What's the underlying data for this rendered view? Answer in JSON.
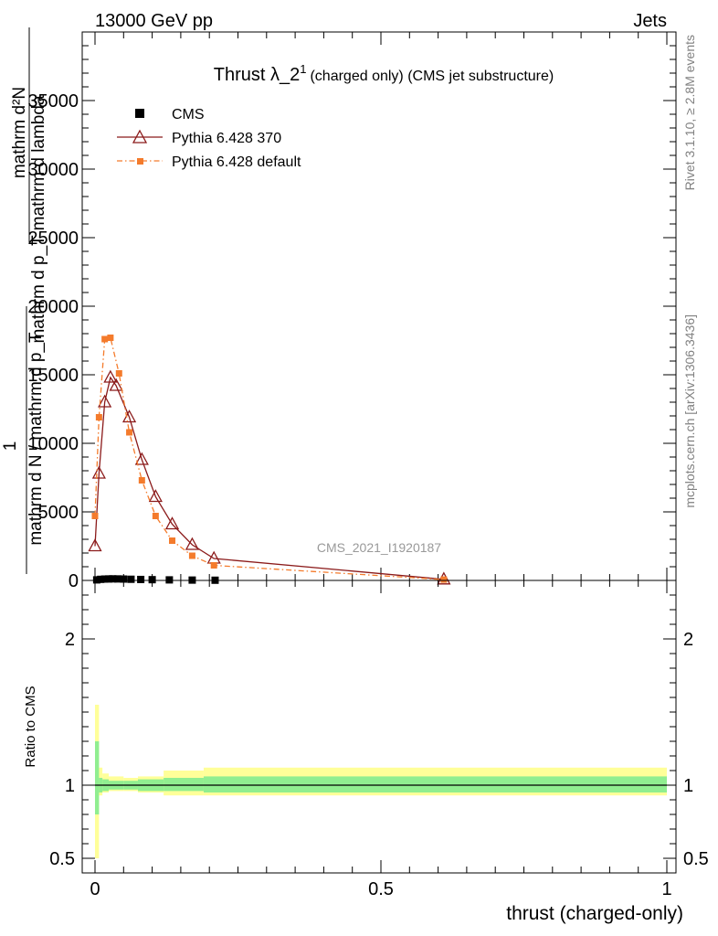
{
  "header": {
    "left_label": "13000 GeV pp",
    "right_label": "Jets"
  },
  "side_text": {
    "rivet": "Rivet 3.1.10, ≥ 2.8M events",
    "mcplots": "mcplots.cern.ch [arXiv:1306.3436]"
  },
  "watermark": "CMS_2021_I1920187",
  "chart_data": [
    {
      "type": "line",
      "title_main": "Thrust λ_2",
      "title_sup": "1",
      "title_rest": "(charged only) (CMS jet substructure)",
      "ylabel_lines": [
        "mathrm d²N",
        "mathrm d p_T mathrm d lambda",
        "1",
        "mathrm d N / mathrm d p_T"
      ],
      "xlim": [
        0,
        1
      ],
      "ylim": [
        0,
        40000
      ],
      "yticks": [
        0,
        5000,
        10000,
        15000,
        20000,
        25000,
        30000,
        35000
      ],
      "ytick_labels": [
        "0",
        "5000",
        "10000",
        "15000",
        "20000",
        "25000",
        "30000",
        "35000"
      ],
      "legend_position": "top-left",
      "series": [
        {
          "name": "CMS",
          "color": "#000000",
          "marker": "square",
          "x": [
            0.003,
            0.01,
            0.017,
            0.024,
            0.031,
            0.04,
            0.05,
            0.063,
            0.08,
            0.1,
            0.13,
            0.17,
            0.21
          ],
          "y": [
            40,
            80,
            100,
            110,
            115,
            110,
            100,
            85,
            70,
            55,
            40,
            25,
            15
          ]
        },
        {
          "name": "Pythia 6.428 370",
          "color": "#8b1a1a",
          "marker": "triangle-open",
          "line": "solid",
          "x": [
            0.0,
            0.007,
            0.017,
            0.027,
            0.037,
            0.06,
            0.082,
            0.106,
            0.135,
            0.17,
            0.208,
            0.61
          ],
          "y": [
            2500,
            7800,
            13000,
            14800,
            14200,
            11900,
            8800,
            6100,
            4100,
            2600,
            1600,
            80
          ]
        },
        {
          "name": "Pythia 6.428 default",
          "color": "#f47b2c",
          "marker": "square-small",
          "line": "dashdot",
          "x": [
            0.0,
            0.007,
            0.017,
            0.027,
            0.042,
            0.06,
            0.082,
            0.106,
            0.135,
            0.17,
            0.208,
            0.61
          ],
          "y": [
            4700,
            11900,
            17600,
            17700,
            15100,
            10800,
            7300,
            4700,
            2900,
            1800,
            1100,
            60
          ]
        }
      ]
    },
    {
      "type": "area",
      "ylabel": "Ratio to CMS",
      "xlabel": "thrust (charged-only)",
      "xlim": [
        0,
        1
      ],
      "ylim": [
        0.4,
        2.4
      ],
      "yticks": [
        0.5,
        1,
        2
      ],
      "ytick_labels": [
        "0.5",
        "1",
        "2"
      ],
      "xticks": [
        0,
        0.5,
        1
      ],
      "xtick_labels": [
        "0",
        "0.5",
        "1"
      ],
      "reference_line": 1,
      "band_edges": [
        0.0,
        0.007,
        0.013,
        0.024,
        0.05,
        0.075,
        0.12,
        0.19,
        1.0
      ],
      "outer_band_low": [
        0.5,
        0.93,
        0.95,
        0.96,
        0.96,
        0.95,
        0.93,
        0.93
      ],
      "outer_band_high": [
        1.55,
        1.12,
        1.08,
        1.06,
        1.05,
        1.06,
        1.1,
        1.12
      ],
      "inner_band_low": [
        0.8,
        0.95,
        0.96,
        0.97,
        0.97,
        0.96,
        0.96,
        0.95
      ],
      "inner_band_high": [
        1.3,
        1.05,
        1.04,
        1.03,
        1.03,
        1.04,
        1.05,
        1.06
      ],
      "outer_band_color": "#ffff99",
      "inner_band_color": "#90ee90"
    }
  ]
}
